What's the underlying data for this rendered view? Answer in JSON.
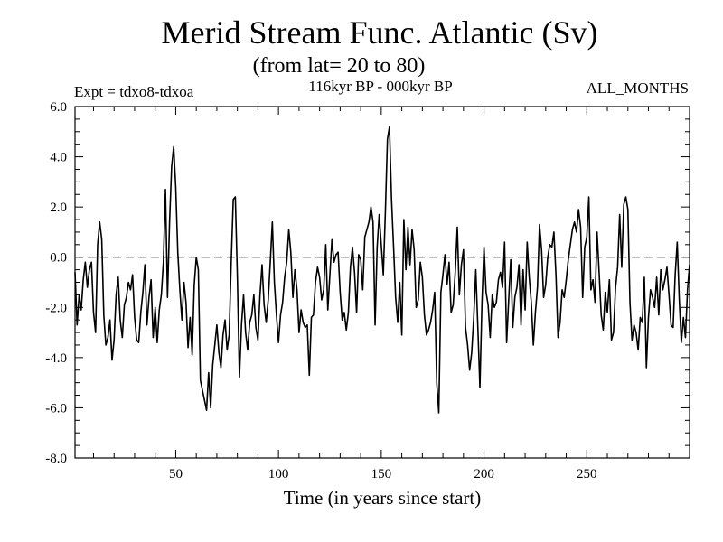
{
  "chart_data": {
    "type": "line",
    "title": "Merid Stream Func. Atlantic (Sv)",
    "subtitle": "(from lat= 20 to 80)",
    "left_label": "Expt = tdxo8-tdxoa",
    "center_label": "116kyr BP - 000kyr BP",
    "right_label": "ALL_MONTHS",
    "xlabel": "Time (in years since start)",
    "ylabel": "",
    "xlim": [
      1,
      300
    ],
    "ylim": [
      -8.0,
      6.0
    ],
    "x_ticks": [
      50,
      100,
      150,
      200,
      250
    ],
    "x_tick_labels": [
      "50",
      "100",
      "150",
      "200",
      "250"
    ],
    "y_ticks": [
      -8.0,
      -6.0,
      -4.0,
      -2.0,
      0.0,
      2.0,
      4.0,
      6.0
    ],
    "y_tick_labels": [
      "-8.0",
      "-6.0",
      "-4.0",
      "-2.0",
      "0.0",
      "2.0",
      "4.0",
      "6.0"
    ],
    "reference_line": {
      "y": 0.0,
      "style": "dashed"
    },
    "grid": false,
    "series": [
      {
        "name": "",
        "color": "#000000",
        "x_start": 1,
        "x_step": 1,
        "y": [
          -0.6,
          -2.7,
          -1.5,
          -2.1,
          -0.9,
          -0.2,
          -1.2,
          -0.5,
          -0.2,
          -2.2,
          -3.0,
          0.5,
          1.4,
          0.7,
          -2.3,
          -3.5,
          -3.2,
          -2.5,
          -4.1,
          -3.3,
          -1.5,
          -0.8,
          -2.5,
          -3.2,
          -1.9,
          -1.6,
          -1.0,
          -1.3,
          -0.7,
          -2.4,
          -3.3,
          -3.4,
          -2.2,
          -1.4,
          -0.3,
          -2.7,
          -1.6,
          -0.9,
          -3.2,
          -2.0,
          -3.4,
          -2.1,
          -1.5,
          -0.2,
          2.7,
          -1.6,
          1.4,
          3.6,
          4.4,
          2.8,
          0.2,
          -1.3,
          -2.5,
          -1.0,
          -1.8,
          -3.6,
          -2.4,
          -3.9,
          -1.1,
          0.0,
          -0.5,
          -4.9,
          -5.3,
          -5.7,
          -6.1,
          -4.6,
          -6.0,
          -4.3,
          -3.5,
          -2.7,
          -3.8,
          -4.4,
          -3.1,
          -2.5,
          -3.7,
          -3.1,
          -0.2,
          2.3,
          2.4,
          -0.8,
          -4.8,
          -2.7,
          -1.5,
          -3.0,
          -3.7,
          -2.6,
          -2.3,
          -1.5,
          -2.8,
          -3.3,
          -1.5,
          -0.3,
          -1.9,
          -2.6,
          -1.7,
          -0.2,
          1.4,
          -1.0,
          -2.3,
          -3.4,
          -2.3,
          -1.8,
          -0.8,
          -0.2,
          1.1,
          0.2,
          -1.6,
          -0.5,
          -1.3,
          -3.0,
          -2.1,
          -2.6,
          -2.8,
          -2.7,
          -4.7,
          -2.4,
          -2.3,
          -1.0,
          -0.4,
          -0.8,
          -1.7,
          -1.3,
          0.5,
          -2.1,
          -0.7,
          0.7,
          -0.2,
          0.1,
          0.2,
          -1.4,
          -2.5,
          -2.2,
          -2.9,
          -2.2,
          -0.4,
          0.4,
          -0.6,
          -2.2,
          0.1,
          -0.1,
          -1.3,
          0.8,
          1.1,
          1.4,
          2.0,
          1.4,
          -2.7,
          0.4,
          1.7,
          0.5,
          -0.7,
          1.8,
          4.7,
          5.2,
          2.3,
          0.4,
          -1.6,
          -2.6,
          -1.0,
          -3.1,
          1.5,
          -0.5,
          1.2,
          -0.3,
          1.1,
          0.3,
          -2.0,
          -1.7,
          -0.2,
          -0.8,
          -2.3,
          -3.1,
          -2.9,
          -2.6,
          -2.1,
          -1.4,
          -5.0,
          -6.2,
          -1.4,
          -0.7,
          0.1,
          -1.1,
          -0.2,
          -2.2,
          -1.9,
          -0.6,
          1.2,
          -1.5,
          -0.3,
          0.3,
          -2.8,
          -3.5,
          -4.5,
          -3.8,
          -2.4,
          -0.5,
          -2.8,
          -5.2,
          -1.8,
          0.4,
          -1.4,
          -1.9,
          -3.2,
          -1.5,
          -2.0,
          -1.8,
          -0.9,
          -0.6,
          -1.2,
          0.6,
          -3.4,
          -1.7,
          -0.1,
          -2.8,
          -1.6,
          -1.2,
          -0.3,
          -2.7,
          -0.5,
          -2.1,
          0.6,
          -0.8,
          -1.8,
          -3.5,
          -2.2,
          -1.2,
          1.3,
          0.3,
          -1.6,
          -1.1,
          0.0,
          0.5,
          0.4,
          1.0,
          -0.7,
          -3.2,
          -2.6,
          -1.3,
          -1.6,
          -0.9,
          -0.1,
          0.5,
          1.1,
          1.4,
          1.0,
          1.9,
          1.2,
          -1.6,
          0.4,
          0.8,
          2.4,
          -1.3,
          -0.9,
          -1.8,
          1.0,
          -0.6,
          -2.3,
          -2.9,
          -1.4,
          -2.2,
          -0.9,
          -3.3,
          -3.0,
          -1.2,
          -0.4,
          1.7,
          -0.4,
          2.1,
          2.4,
          1.9,
          -1.8,
          -3.3,
          -2.7,
          -3.0,
          -3.7,
          -2.4,
          -2.6,
          -0.8,
          -4.4,
          -2.4,
          -1.3,
          -1.6,
          -2.0,
          -0.8,
          -2.3,
          -0.5,
          -1.3,
          -0.9,
          -0.4,
          -1.5,
          -2.7,
          -2.8,
          -0.7,
          0.6,
          -1.7,
          -3.4,
          -2.4,
          -3.2,
          -1.3,
          -0.3
        ]
      }
    ]
  }
}
